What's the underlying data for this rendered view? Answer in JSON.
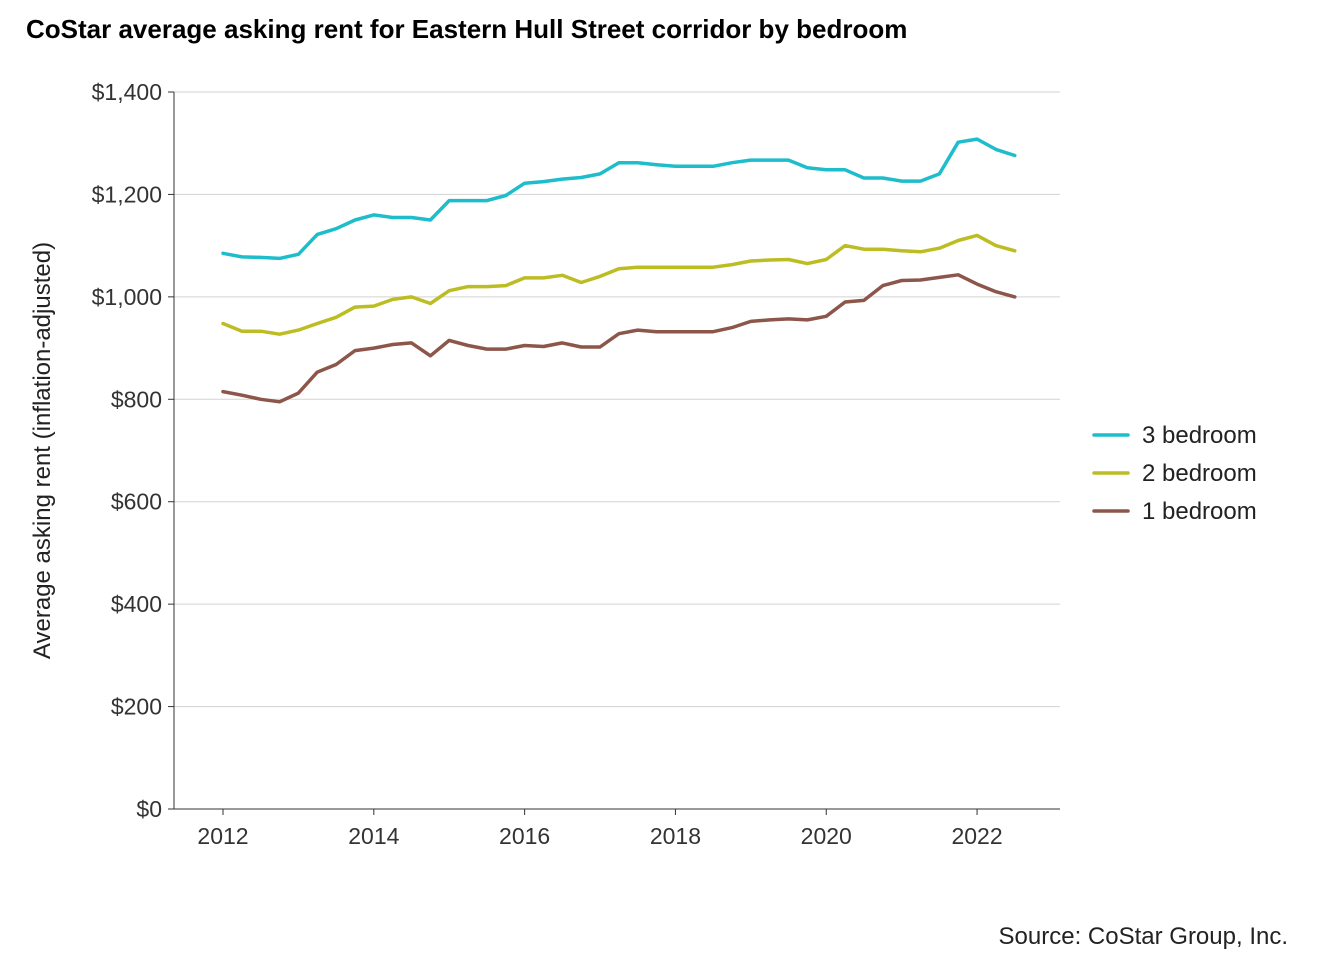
{
  "chart_data": {
    "type": "line",
    "title": "CoStar average asking rent for Eastern Hull Street corridor by bedroom",
    "ylabel": "Average asking rent (inflation-adjusted)",
    "xlabel": "",
    "caption": "Source: CoStar Group, Inc.",
    "xlim": [
      2011.35,
      2023.1
    ],
    "ylim": [
      0,
      1400
    ],
    "x_ticks": [
      2012,
      2014,
      2016,
      2018,
      2020,
      2022
    ],
    "y_ticks": [
      0,
      200,
      400,
      600,
      800,
      1000,
      1200,
      1400
    ],
    "y_tick_labels": [
      "$0",
      "$200",
      "$400",
      "$600",
      "$800",
      "$1,000",
      "$1,200",
      "$1,400"
    ],
    "grid": "horizontal major",
    "legend_position": "right",
    "x": [
      2012.0,
      2012.25,
      2012.5,
      2012.75,
      2013.0,
      2013.25,
      2013.5,
      2013.75,
      2014.0,
      2014.25,
      2014.5,
      2014.75,
      2015.0,
      2015.25,
      2015.5,
      2015.75,
      2016.0,
      2016.25,
      2016.5,
      2016.75,
      2017.0,
      2017.25,
      2017.5,
      2017.75,
      2018.0,
      2018.25,
      2018.5,
      2018.75,
      2019.0,
      2019.25,
      2019.5,
      2019.75,
      2020.0,
      2020.25,
      2020.5,
      2020.75,
      2021.0,
      2021.25,
      2021.5,
      2021.75,
      2022.0,
      2022.25,
      2022.5
    ],
    "series": [
      {
        "name": "3 bedroom",
        "color": "#1ebdcc",
        "values": [
          1085,
          1078,
          1077,
          1075,
          1083,
          1122,
          1133,
          1150,
          1160,
          1155,
          1155,
          1150,
          1188,
          1188,
          1188,
          1198,
          1222,
          1225,
          1230,
          1233,
          1240,
          1262,
          1262,
          1258,
          1255,
          1255,
          1255,
          1262,
          1267,
          1267,
          1267,
          1252,
          1248,
          1248,
          1232,
          1232,
          1226,
          1226,
          1240,
          1302,
          1308,
          1288,
          1276
        ]
      },
      {
        "name": "2 bedroom",
        "color": "#bcbd22",
        "values": [
          948,
          933,
          933,
          927,
          935,
          948,
          960,
          980,
          982,
          995,
          1000,
          987,
          1012,
          1020,
          1020,
          1022,
          1037,
          1037,
          1042,
          1028,
          1040,
          1055,
          1058,
          1058,
          1058,
          1058,
          1058,
          1063,
          1070,
          1072,
          1073,
          1065,
          1073,
          1100,
          1093,
          1093,
          1090,
          1088,
          1095,
          1110,
          1120,
          1100,
          1090
        ]
      },
      {
        "name": "1 bedroom",
        "color": "#8c564b",
        "values": [
          815,
          808,
          800,
          795,
          812,
          853,
          868,
          895,
          900,
          907,
          910,
          885,
          915,
          905,
          898,
          898,
          905,
          903,
          910,
          902,
          902,
          928,
          935,
          932,
          932,
          932,
          932,
          940,
          952,
          955,
          957,
          955,
          962,
          990,
          993,
          1022,
          1032,
          1033,
          1038,
          1043,
          1025,
          1010,
          1000
        ]
      }
    ]
  }
}
